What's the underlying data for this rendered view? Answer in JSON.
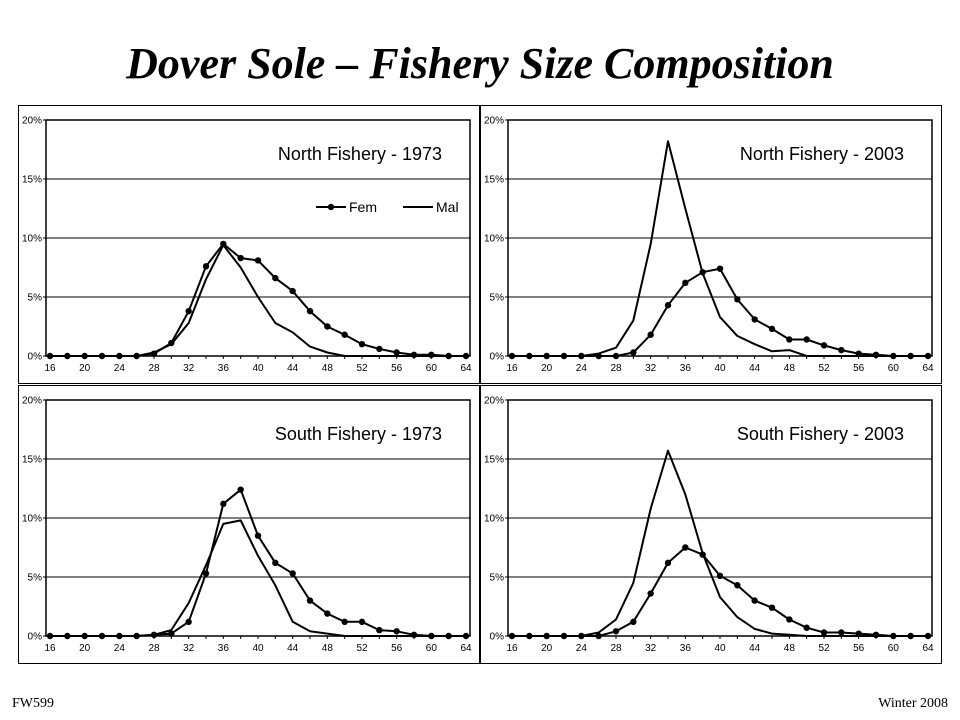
{
  "slide": {
    "title": "Dover Sole – Fishery Size Composition",
    "footer_left": "FW599",
    "footer_right": "Winter 2008"
  },
  "chart_data": [
    {
      "type": "line",
      "title": "North Fishery - 1973",
      "x": [
        16,
        18,
        20,
        22,
        24,
        26,
        28,
        30,
        32,
        34,
        36,
        38,
        40,
        42,
        44,
        46,
        48,
        50,
        52,
        54,
        56,
        58,
        60,
        62,
        64
      ],
      "xticks": [
        16,
        20,
        24,
        28,
        32,
        36,
        40,
        44,
        48,
        52,
        56,
        60,
        64
      ],
      "ylim": [
        0,
        20
      ],
      "yticks": [
        "0%",
        "5%",
        "10%",
        "15%",
        "20%"
      ],
      "grid": true,
      "legend": "inside-right",
      "series": [
        {
          "name": "Fem",
          "markers": true,
          "values": [
            0,
            0,
            0,
            0,
            0,
            0,
            0.2,
            1.1,
            3.8,
            7.6,
            9.5,
            8.3,
            8.1,
            6.6,
            5.5,
            3.8,
            2.5,
            1.8,
            1.0,
            0.6,
            0.3,
            0.1,
            0.1,
            0,
            0
          ]
        },
        {
          "name": "Mal",
          "markers": false,
          "values": [
            0,
            0,
            0,
            0,
            0,
            0,
            0.3,
            1.0,
            2.8,
            6.5,
            9.4,
            7.5,
            5.0,
            2.8,
            2.0,
            0.8,
            0.3,
            0,
            0,
            0,
            0,
            0,
            0,
            0,
            0
          ]
        }
      ]
    },
    {
      "type": "line",
      "title": "North Fishery - 2003",
      "x": [
        16,
        18,
        20,
        22,
        24,
        26,
        28,
        30,
        32,
        34,
        36,
        38,
        40,
        42,
        44,
        46,
        48,
        50,
        52,
        54,
        56,
        58,
        60,
        62,
        64
      ],
      "xticks": [
        16,
        20,
        24,
        28,
        32,
        36,
        40,
        44,
        48,
        52,
        56,
        60,
        64
      ],
      "ylim": [
        0,
        20
      ],
      "yticks": [
        "0%",
        "5%",
        "10%",
        "15%",
        "20%"
      ],
      "grid": true,
      "legend": "none",
      "series": [
        {
          "name": "Fem",
          "markers": true,
          "values": [
            0,
            0,
            0,
            0,
            0,
            0,
            0,
            0.3,
            1.8,
            4.3,
            6.2,
            7.1,
            7.4,
            4.8,
            3.1,
            2.3,
            1.4,
            1.4,
            0.9,
            0.5,
            0.2,
            0.1,
            0,
            0,
            0
          ]
        },
        {
          "name": "Mal",
          "markers": false,
          "values": [
            0,
            0,
            0,
            0,
            0,
            0.2,
            0.7,
            3.0,
            9.5,
            18.2,
            12.5,
            7.0,
            3.3,
            1.7,
            1.0,
            0.4,
            0.5,
            0,
            0,
            0,
            0,
            0,
            0,
            0,
            0
          ]
        }
      ]
    },
    {
      "type": "line",
      "title": "South Fishery - 1973",
      "x": [
        16,
        18,
        20,
        22,
        24,
        26,
        28,
        30,
        32,
        34,
        36,
        38,
        40,
        42,
        44,
        46,
        48,
        50,
        52,
        54,
        56,
        58,
        60,
        62,
        64
      ],
      "xticks": [
        16,
        20,
        24,
        28,
        32,
        36,
        40,
        44,
        48,
        52,
        56,
        60,
        64
      ],
      "ylim": [
        0,
        20
      ],
      "yticks": [
        "0%",
        "5%",
        "10%",
        "15%",
        "20%"
      ],
      "grid": true,
      "legend": "none",
      "series": [
        {
          "name": "Fem",
          "markers": true,
          "values": [
            0,
            0,
            0,
            0,
            0,
            0,
            0.1,
            0.2,
            1.2,
            5.3,
            11.2,
            12.4,
            8.5,
            6.2,
            5.3,
            3.0,
            1.9,
            1.2,
            1.2,
            0.5,
            0.4,
            0.1,
            0,
            0,
            0
          ]
        },
        {
          "name": "Mal",
          "markers": false,
          "values": [
            0,
            0,
            0,
            0,
            0,
            0,
            0.1,
            0.5,
            2.8,
            6.0,
            9.5,
            9.8,
            6.8,
            4.3,
            1.2,
            0.4,
            0.2,
            0,
            0,
            0,
            0,
            0,
            0,
            0,
            0
          ]
        }
      ]
    },
    {
      "type": "line",
      "title": "South Fishery - 2003",
      "x": [
        16,
        18,
        20,
        22,
        24,
        26,
        28,
        30,
        32,
        34,
        36,
        38,
        40,
        42,
        44,
        46,
        48,
        50,
        52,
        54,
        56,
        58,
        60,
        62,
        64
      ],
      "xticks": [
        16,
        20,
        24,
        28,
        32,
        36,
        40,
        44,
        48,
        52,
        56,
        60,
        64
      ],
      "ylim": [
        0,
        20
      ],
      "yticks": [
        "0%",
        "5%",
        "10%",
        "15%",
        "20%"
      ],
      "grid": true,
      "legend": "none",
      "series": [
        {
          "name": "Fem",
          "markers": true,
          "values": [
            0,
            0,
            0,
            0,
            0,
            0,
            0.4,
            1.2,
            3.6,
            6.2,
            7.5,
            6.9,
            5.1,
            4.3,
            3.0,
            2.4,
            1.4,
            0.7,
            0.3,
            0.3,
            0.2,
            0.1,
            0,
            0,
            0
          ]
        },
        {
          "name": "Mal",
          "markers": false,
          "values": [
            0,
            0,
            0,
            0,
            0,
            0.3,
            1.4,
            4.5,
            10.8,
            15.7,
            12.0,
            7.0,
            3.3,
            1.6,
            0.6,
            0.2,
            0.1,
            0,
            0,
            0,
            0,
            0,
            0,
            0,
            0
          ]
        }
      ]
    }
  ]
}
